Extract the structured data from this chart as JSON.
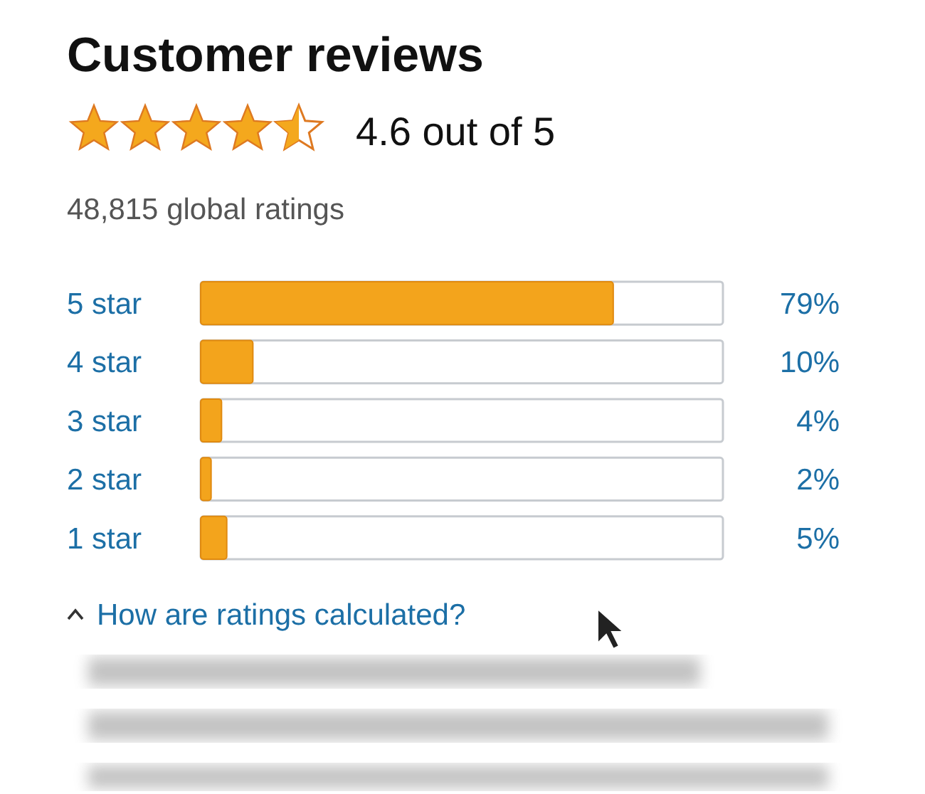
{
  "chart_data": {
    "type": "bar",
    "orientation": "horizontal",
    "title": "Customer reviews",
    "subtitle": "48,815 global ratings",
    "annotations": [
      "4.6 out of 5",
      "How are ratings calculated?"
    ],
    "categories": [
      "5 star",
      "4 star",
      "3 star",
      "2 star",
      "1 star"
    ],
    "values": [
      79,
      10,
      4,
      2,
      5
    ],
    "value_labels": [
      "79%",
      "10%",
      "4%",
      "2%",
      "5%"
    ],
    "color": "#f3a41c",
    "xlim": [
      0,
      100
    ],
    "tick_labels": "y"
  }
}
